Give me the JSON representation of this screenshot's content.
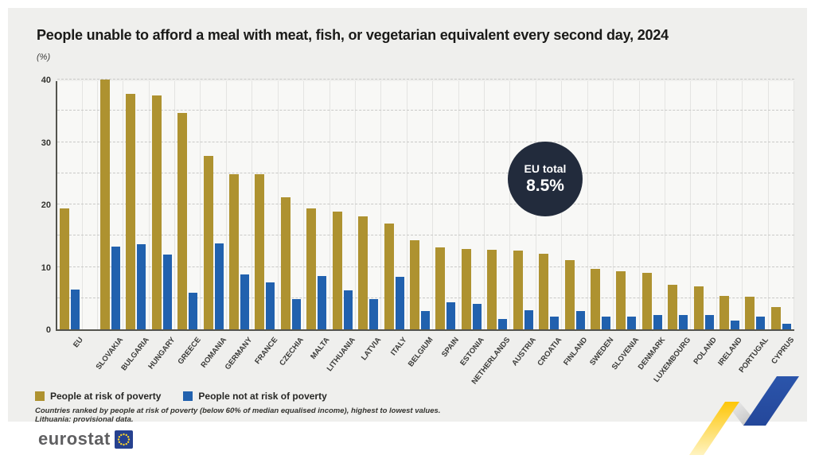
{
  "page": {
    "title": "People unable to afford a meal with meat, fish, or vegetarian equivalent every second day, 2024",
    "unit_label": "(%)"
  },
  "chart_data": {
    "type": "bar",
    "title": "People unable to afford a meal with meat, fish, or vegetarian equivalent every second day, 2024",
    "xlabel": "",
    "ylabel": "(%)",
    "ylim": [
      0,
      40
    ],
    "yticks": [
      0,
      10,
      20,
      30,
      40
    ],
    "grid": {
      "horizontal_dashed_every": 5,
      "vertical_lines": true
    },
    "legend_position": "bottom-left",
    "gap_after_index": 0,
    "categories": [
      "EU",
      "SLOVAKIA",
      "BULGARIA",
      "HUNGARY",
      "GREECE",
      "ROMANIA",
      "GERMANY",
      "FRANCE",
      "CZECHIA",
      "MALTA",
      "LITHUANIA",
      "LATVIA",
      "ITALY",
      "BELGIUM",
      "SPAIN",
      "ESTONIA",
      "NETHERLANDS",
      "AUSTRIA",
      "CROATIA",
      "FINLAND",
      "SWEDEN",
      "SLOVENIA",
      "DENMARK",
      "LUXEMBOURG",
      "POLAND",
      "IRELAND",
      "PORTUGAL",
      "CYPRUS"
    ],
    "series": [
      {
        "name": "People at risk of poverty",
        "color": "#ae9230",
        "values": [
          19.4,
          40.0,
          37.7,
          37.4,
          34.7,
          27.8,
          24.9,
          24.8,
          21.1,
          19.4,
          18.9,
          18.1,
          16.9,
          14.3,
          13.1,
          12.9,
          12.7,
          12.6,
          12.1,
          11.1,
          9.7,
          9.3,
          9.1,
          7.1,
          6.9,
          5.3,
          5.2,
          3.6
        ]
      },
      {
        "name": "People not at risk of poverty",
        "color": "#2161ae",
        "values": [
          6.4,
          13.3,
          13.6,
          12.0,
          5.8,
          13.7,
          8.8,
          7.5,
          4.8,
          8.5,
          6.2,
          4.9,
          8.4,
          2.9,
          4.3,
          4.1,
          1.6,
          3.0,
          2.1,
          2.9,
          2.1,
          2.1,
          2.3,
          2.3,
          2.3,
          1.4,
          2.1,
          0.9
        ]
      }
    ],
    "annotation": {
      "label": "EU total",
      "value": "8.5%"
    }
  },
  "badge": {
    "line1": "EU total",
    "line2": "8.5%"
  },
  "legend": {
    "items": [
      {
        "label": "People at risk of poverty",
        "color": "#ae9230"
      },
      {
        "label": "People not at risk of poverty",
        "color": "#2161ae"
      }
    ]
  },
  "footnotes": {
    "line1": "Countries ranked by people at risk of poverty (below 60% of median equalised income), highest to lowest values.",
    "line2": "Lithuania: provisional data."
  },
  "logo": {
    "text": "eurostat"
  },
  "colors": {
    "gold": "#ae9230",
    "blue": "#2161ae",
    "badge_bg": "#222b3c",
    "panel_bg": "#efefed",
    "plot_bg": "#f8f8f6",
    "axis": "#54544e"
  }
}
